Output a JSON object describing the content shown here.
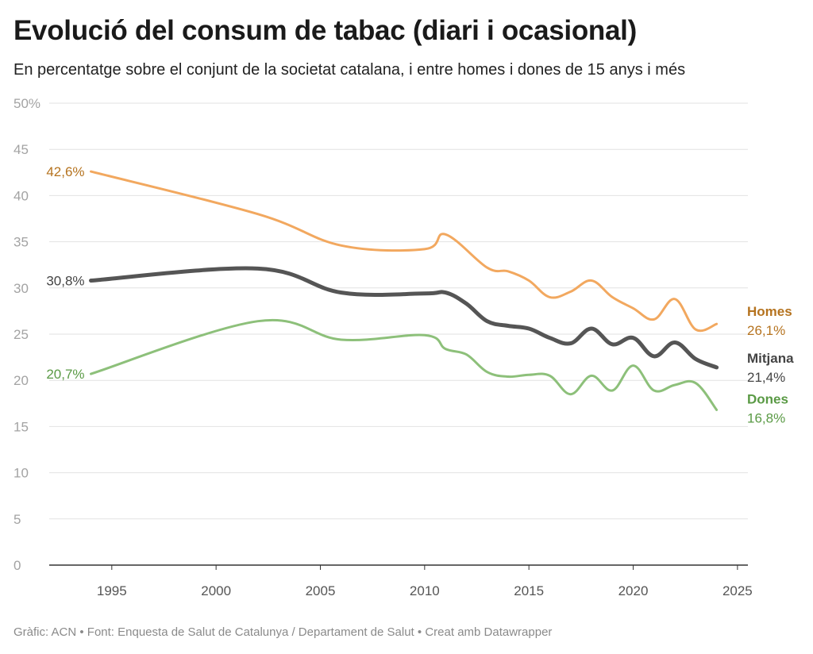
{
  "header": {
    "title": "Evolució del consum de tabac (diari i ocasional)",
    "subtitle": "En percentatge sobre el conjunt de la societat catalana, i entre homes i dones de 15 anys i més"
  },
  "footer": {
    "chart_credit": "Gràfic: ACN",
    "separator": "•",
    "source": "Font: Enquesta de Salut de Catalunya / Departament de Salut",
    "tool": "Creat amb Datawrapper"
  },
  "chart_data": {
    "type": "line",
    "title": "Evolució del consum de tabac (diari i ocasional)",
    "subtitle": "En percentatge sobre el conjunt de la societat catalana, i entre homes i dones de 15 anys i més",
    "xlabel": "",
    "ylabel": "",
    "xlim": [
      1992,
      2025.5
    ],
    "ylim": [
      0,
      50
    ],
    "x_ticks": [
      1995,
      2000,
      2005,
      2010,
      2015,
      2020,
      2025
    ],
    "y_ticks": [
      "0",
      "5",
      "10",
      "15",
      "20",
      "25",
      "30",
      "35",
      "40",
      "45",
      "50%"
    ],
    "grid": true,
    "legend": "direct labels at right end of lines",
    "series": [
      {
        "name": "Homes",
        "color": "#f2a85f",
        "label_color": "#b5731f",
        "start_label": "42,6%",
        "end_label": "26,1%",
        "x": [
          1994,
          2002,
          2006,
          2010,
          2011,
          2013,
          2014,
          2015,
          2016,
          2017,
          2018,
          2019,
          2020,
          2021,
          2022,
          2023,
          2024
        ],
        "y": [
          42.6,
          38.0,
          34.6,
          34.2,
          35.8,
          32.2,
          31.8,
          30.8,
          29.0,
          29.6,
          30.8,
          29.0,
          27.8,
          26.6,
          28.8,
          25.5,
          26.1
        ]
      },
      {
        "name": "Mitjana",
        "color": "#555555",
        "label_color": "#444444",
        "start_label": "30,8%",
        "end_label": "21,4%",
        "x": [
          1994,
          2002,
          2006,
          2010,
          2011,
          2012,
          2013,
          2014,
          2015,
          2016,
          2017,
          2018,
          2019,
          2020,
          2021,
          2022,
          2023,
          2024
        ],
        "y": [
          30.8,
          32.1,
          29.5,
          29.4,
          29.5,
          28.3,
          26.4,
          25.9,
          25.6,
          24.6,
          24.0,
          25.6,
          23.9,
          24.6,
          22.6,
          24.1,
          22.3,
          21.4
        ]
      },
      {
        "name": "Dones",
        "color": "#8dc07a",
        "label_color": "#5a9a45",
        "start_label": "20,7%",
        "end_label": "16,8%",
        "x": [
          1994,
          2002,
          2006,
          2010,
          2011,
          2012,
          2013,
          2014,
          2015,
          2016,
          2017,
          2018,
          2019,
          2020,
          2021,
          2022,
          2023,
          2024
        ],
        "y": [
          20.7,
          26.4,
          24.4,
          24.9,
          23.4,
          22.8,
          20.9,
          20.4,
          20.6,
          20.5,
          18.5,
          20.5,
          18.9,
          21.6,
          18.9,
          19.5,
          19.7,
          16.8
        ]
      }
    ]
  }
}
